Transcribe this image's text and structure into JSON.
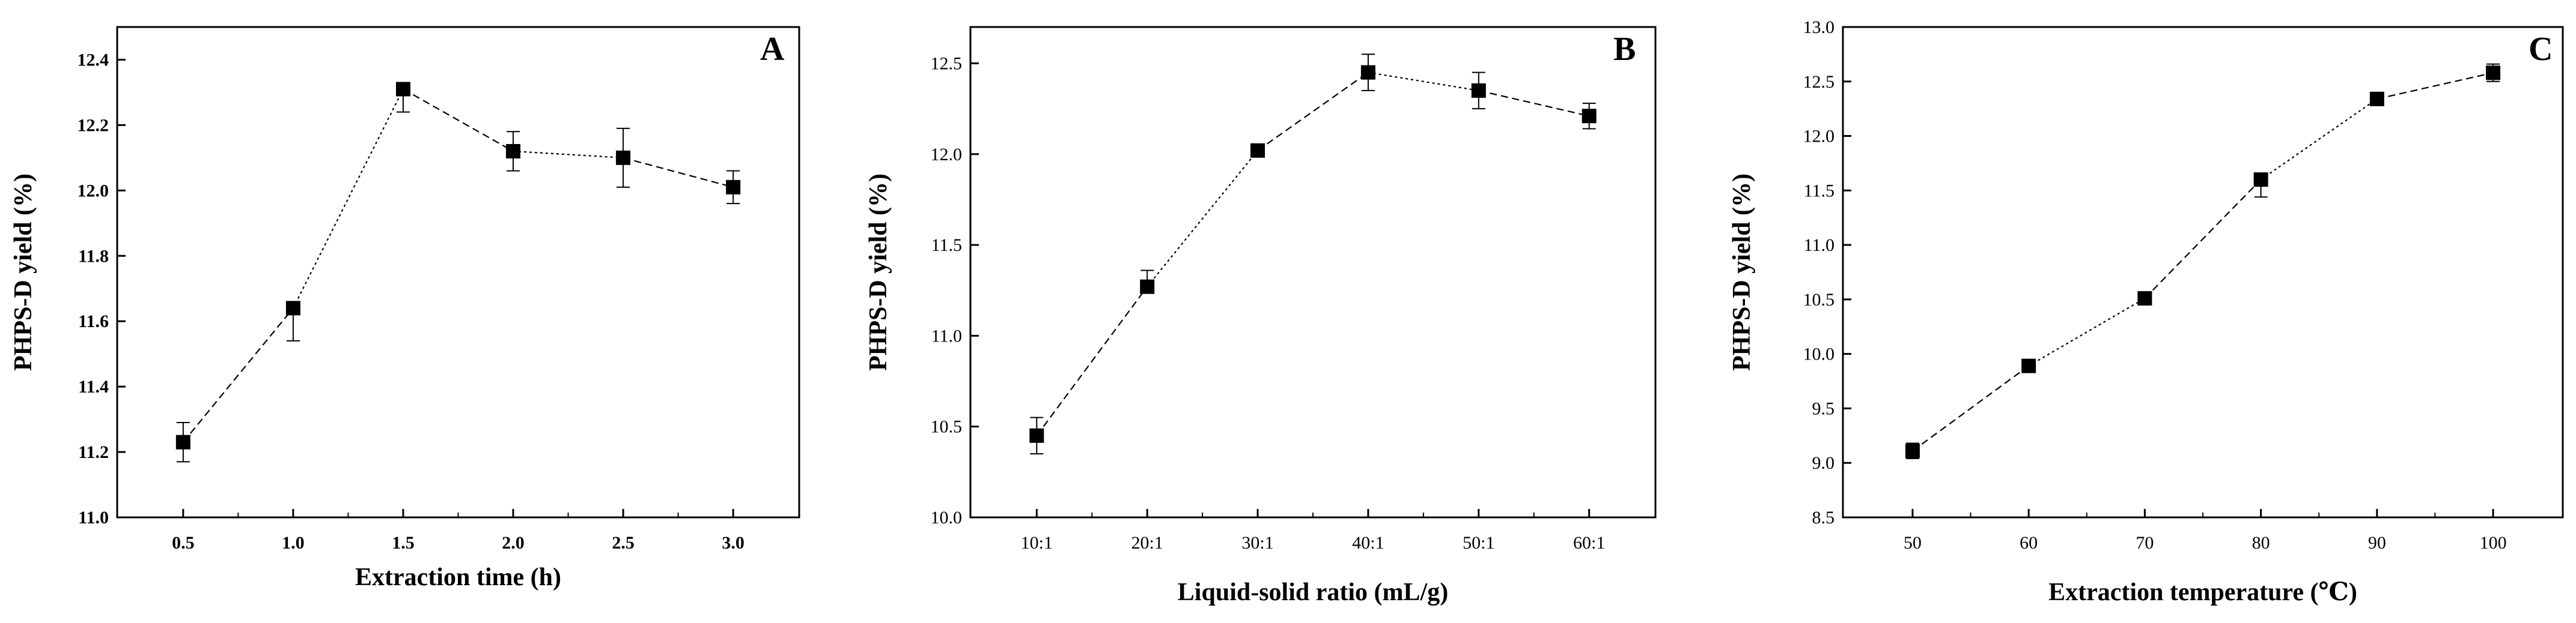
{
  "chart_data": [
    {
      "type": "line",
      "panel_label": "A",
      "xlabel": "Extraction time (h)",
      "ylabel": "PHPS-D yield (%)",
      "x_ticks": [
        "0.5",
        "1.0",
        "1.5",
        "2.0",
        "2.5",
        "3.0"
      ],
      "y_ticks": [
        "11.0",
        "11.2",
        "11.4",
        "11.6",
        "11.8",
        "12.0",
        "12.2",
        "12.4"
      ],
      "xlim": [
        0.2,
        3.3
      ],
      "ylim": [
        11.0,
        12.5
      ],
      "series": [
        {
          "x": [
            0.5,
            1.0,
            1.5,
            2.0,
            2.5,
            3.0
          ],
          "y": [
            11.23,
            11.64,
            12.31,
            12.12,
            12.1,
            12.01
          ],
          "err_low": [
            0.06,
            0.1,
            0.07,
            0.06,
            0.09,
            0.05
          ],
          "err_high": [
            0.06,
            0.01,
            0.01,
            0.06,
            0.09,
            0.05
          ]
        }
      ]
    },
    {
      "type": "line",
      "panel_label": "B",
      "xlabel": "Liquid-solid ratio (mL/g)",
      "ylabel": "PHPS-D yield (%)",
      "x_ticks": [
        "10:1",
        "20:1",
        "30:1",
        "40:1",
        "50:1",
        "60:1"
      ],
      "y_ticks": [
        "10.0",
        "10.5",
        "11.0",
        "11.5",
        "12.0",
        "12.5"
      ],
      "xlim": [
        0.4,
        6.6
      ],
      "ylim": [
        10.0,
        12.7
      ],
      "series": [
        {
          "x": [
            1,
            2,
            3,
            4,
            5,
            6
          ],
          "y": [
            10.45,
            11.27,
            12.02,
            12.45,
            12.35,
            12.21
          ],
          "err_low": [
            0.1,
            0.01,
            0.01,
            0.1,
            0.1,
            0.07
          ],
          "err_high": [
            0.1,
            0.09,
            0.01,
            0.1,
            0.1,
            0.07
          ]
        }
      ]
    },
    {
      "type": "line",
      "panel_label": "C",
      "xlabel": "Extraction temperature (℃)",
      "ylabel": "PHPS-D yield (%)",
      "x_ticks": [
        "50",
        "60",
        "70",
        "80",
        "90",
        "100"
      ],
      "y_ticks": [
        "8.5",
        "9.0",
        "9.5",
        "10.0",
        "10.5",
        "11.0",
        "11.5",
        "12.0",
        "12.5",
        "13.0"
      ],
      "xlim": [
        44,
        106
      ],
      "ylim": [
        8.5,
        13.0
      ],
      "series": [
        {
          "x": [
            50,
            60,
            70,
            80,
            90,
            100
          ],
          "y": [
            9.11,
            9.89,
            10.51,
            11.6,
            12.34,
            12.58
          ],
          "err_low": [
            0.07,
            0.01,
            0.01,
            0.16,
            0.06,
            0.08
          ],
          "err_high": [
            0.07,
            0.01,
            0.01,
            0.01,
            0.01,
            0.08
          ]
        }
      ]
    }
  ]
}
